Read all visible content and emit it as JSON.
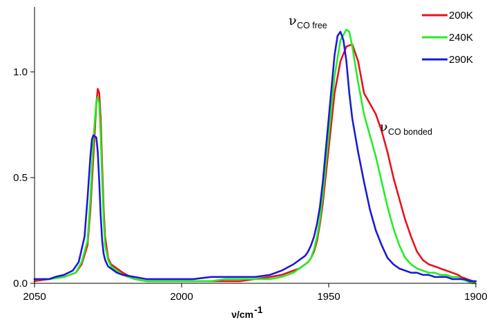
{
  "chart_data": {
    "type": "line",
    "title": "",
    "xlabel": "ν/cm",
    "xlabel_superscript": "-1",
    "ylabel": "",
    "xlim": [
      2050,
      1900
    ],
    "ylim": [
      0,
      1.25
    ],
    "x_reversed": true,
    "x_ticks": [
      "2050",
      "2000",
      "1950",
      "1900"
    ],
    "x_tick_values": [
      2050,
      2000,
      1950,
      1900
    ],
    "y_ticks": [
      "0.0",
      "0.5",
      "1.0"
    ],
    "y_tick_values": [
      0,
      0.5,
      1.0
    ],
    "grid": false,
    "legend_position": "top-right",
    "annotations": [
      {
        "text": "ν",
        "subscript": "CO free",
        "x": 1959,
        "y": 1.27
      },
      {
        "text": "ν",
        "subscript": "CO bonded",
        "x": 1934,
        "y": 0.73
      }
    ],
    "series": [
      {
        "name": "200K",
        "color": "#e8121a",
        "x": [
          2050,
          2045,
          2040,
          2036,
          2034,
          2032,
          2031,
          2030,
          2029,
          2028.5,
          2028,
          2027.5,
          2027,
          2026.5,
          2026,
          2025,
          2024,
          2022,
          2020,
          2016,
          2012,
          2008,
          2004,
          2000,
          1995,
          1990,
          1985,
          1980,
          1975,
          1970,
          1966,
          1962,
          1960,
          1958,
          1957,
          1956,
          1955,
          1954,
          1953,
          1952,
          1950,
          1948,
          1946,
          1944,
          1942,
          1940,
          1938,
          1936,
          1934,
          1932,
          1930,
          1928,
          1926,
          1924,
          1922,
          1920,
          1918,
          1916,
          1914,
          1912,
          1910,
          1908,
          1906,
          1905,
          1903,
          1901,
          1900
        ],
        "y": [
          0.01,
          0.02,
          0.03,
          0.05,
          0.09,
          0.18,
          0.35,
          0.6,
          0.85,
          0.92,
          0.9,
          0.78,
          0.55,
          0.35,
          0.22,
          0.12,
          0.09,
          0.07,
          0.05,
          0.02,
          0.01,
          0.01,
          0.01,
          0.01,
          0.01,
          0.01,
          0.01,
          0.01,
          0.02,
          0.03,
          0.04,
          0.06,
          0.07,
          0.09,
          0.1,
          0.12,
          0.15,
          0.2,
          0.28,
          0.38,
          0.64,
          0.9,
          1.05,
          1.12,
          1.13,
          1.05,
          0.9,
          0.85,
          0.8,
          0.72,
          0.62,
          0.5,
          0.4,
          0.3,
          0.22,
          0.15,
          0.11,
          0.09,
          0.08,
          0.07,
          0.06,
          0.05,
          0.04,
          0.03,
          0.02,
          0.01,
          0.0
        ]
      },
      {
        "name": "240K",
        "color": "#22ee22",
        "x": [
          2050,
          2045,
          2040,
          2036,
          2034,
          2032,
          2031,
          2030,
          2029,
          2028.5,
          2028,
          2027.5,
          2027,
          2026.5,
          2026,
          2025,
          2024,
          2022,
          2020,
          2016,
          2012,
          2008,
          2004,
          2000,
          1995,
          1990,
          1985,
          1980,
          1975,
          1970,
          1966,
          1962,
          1960,
          1958,
          1957,
          1956,
          1955,
          1954,
          1953,
          1952,
          1950,
          1948,
          1946,
          1944,
          1943,
          1942,
          1940,
          1938,
          1936,
          1934,
          1932,
          1930,
          1928,
          1926,
          1924,
          1922,
          1920,
          1918,
          1916,
          1914,
          1912,
          1910,
          1908,
          1906,
          1905,
          1903,
          1901,
          1900
        ],
        "y": [
          0.02,
          0.02,
          0.03,
          0.05,
          0.1,
          0.2,
          0.4,
          0.68,
          0.86,
          0.88,
          0.85,
          0.7,
          0.48,
          0.3,
          0.18,
          0.11,
          0.08,
          0.06,
          0.04,
          0.02,
          0.01,
          0.01,
          0.01,
          0.01,
          0.01,
          0.01,
          0.02,
          0.02,
          0.02,
          0.02,
          0.03,
          0.05,
          0.07,
          0.09,
          0.1,
          0.12,
          0.16,
          0.22,
          0.3,
          0.42,
          0.7,
          0.98,
          1.15,
          1.2,
          1.19,
          1.12,
          0.95,
          0.8,
          0.7,
          0.6,
          0.48,
          0.36,
          0.26,
          0.18,
          0.12,
          0.09,
          0.07,
          0.06,
          0.05,
          0.05,
          0.04,
          0.04,
          0.03,
          0.03,
          0.02,
          0.01,
          0.0,
          0.0
        ]
      },
      {
        "name": "290K",
        "color": "#1a1ad6",
        "x": [
          2050,
          2045,
          2043,
          2040,
          2037,
          2035,
          2033,
          2032,
          2031,
          2030.5,
          2030,
          2029,
          2028.5,
          2028,
          2027.5,
          2027,
          2026.5,
          2026,
          2025,
          2024,
          2022,
          2020,
          2016,
          2012,
          2008,
          2004,
          2000,
          1996,
          1990,
          1985,
          1980,
          1975,
          1970,
          1966,
          1962,
          1960,
          1958,
          1957,
          1956,
          1955,
          1954,
          1953,
          1952,
          1950,
          1948,
          1947,
          1946,
          1945,
          1944,
          1943,
          1942,
          1940,
          1938,
          1936,
          1934,
          1932,
          1930,
          1928,
          1926,
          1924,
          1922,
          1920,
          1918,
          1916,
          1914,
          1912,
          1910,
          1908,
          1906,
          1904,
          1902,
          1900
        ],
        "y": [
          0.02,
          0.02,
          0.03,
          0.04,
          0.06,
          0.1,
          0.22,
          0.4,
          0.6,
          0.68,
          0.7,
          0.69,
          0.62,
          0.48,
          0.32,
          0.2,
          0.14,
          0.11,
          0.08,
          0.07,
          0.05,
          0.04,
          0.03,
          0.02,
          0.02,
          0.02,
          0.02,
          0.02,
          0.03,
          0.03,
          0.03,
          0.03,
          0.04,
          0.06,
          0.09,
          0.11,
          0.13,
          0.15,
          0.18,
          0.22,
          0.28,
          0.36,
          0.48,
          0.78,
          1.08,
          1.17,
          1.19,
          1.15,
          1.05,
          0.9,
          0.78,
          0.62,
          0.48,
          0.35,
          0.25,
          0.18,
          0.12,
          0.09,
          0.07,
          0.06,
          0.05,
          0.05,
          0.04,
          0.04,
          0.03,
          0.03,
          0.03,
          0.02,
          0.02,
          0.02,
          0.01,
          0.01
        ]
      }
    ]
  }
}
